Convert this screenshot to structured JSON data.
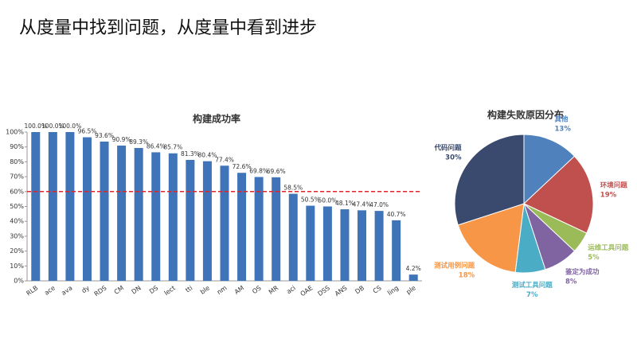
{
  "header": {
    "title": "从度量中找到问题，从度量中看到进步"
  },
  "chart_data": [
    {
      "type": "bar",
      "title": "构建成功率",
      "categories": [
        "RLB",
        "ace",
        "ava",
        "dy",
        "RDS",
        "CM",
        "DN",
        "DS",
        "lect",
        "tti",
        "ble",
        "nm",
        "AM",
        "OS",
        "MR",
        "aci",
        "OAE",
        "DSS",
        "ANS",
        "DB",
        "CS",
        "ling",
        "ple"
      ],
      "values": [
        100.0,
        100.0,
        100.0,
        96.5,
        93.6,
        90.9,
        89.3,
        86.4,
        85.7,
        81.3,
        80.4,
        77.4,
        72.6,
        69.8,
        69.6,
        58.5,
        50.5,
        50.0,
        48.1,
        47.4,
        47.0,
        40.7,
        4.2
      ],
      "value_labels": [
        "100.0%",
        "100.0%",
        "100.0%",
        "96.5%",
        "93.6%",
        "90.9%",
        "89.3%",
        "86.4%",
        "85.7%",
        "81.3%",
        "80.4%",
        "77.4%",
        "72.6%",
        "69.8%",
        "69.6%",
        "58.5%",
        "50.5%",
        "50.0%",
        "48.1%",
        "47.4%",
        "47.0%",
        "40.7%",
        "4.2%"
      ],
      "color": "#3f74b8",
      "ylim": [
        0,
        100
      ],
      "yticks": [
        {
          "value": 0,
          "label": "0%"
        },
        {
          "value": 10,
          "label": "10%"
        },
        {
          "value": 20,
          "label": "20%"
        },
        {
          "value": 30,
          "label": "30%"
        },
        {
          "value": 40,
          "label": "40%"
        },
        {
          "value": 50,
          "label": "50%"
        },
        {
          "value": 60,
          "label": "60%"
        },
        {
          "value": 70,
          "label": "70%"
        },
        {
          "value": 80,
          "label": "80%"
        },
        {
          "value": 90,
          "label": "90%"
        },
        {
          "value": 100,
          "label": "100%"
        }
      ],
      "reference_line": {
        "value": 60,
        "color": "#d9272e"
      }
    },
    {
      "type": "pie",
      "title": "构建失败原因分布",
      "categories": [
        "其他",
        "环境问题",
        "运维工具问题",
        "鉴定为成功",
        "测试工具问题",
        "测试用例问题",
        "代码问题"
      ],
      "values": [
        13,
        19,
        5,
        8,
        7,
        18,
        30
      ],
      "value_labels": [
        "13%",
        "19%",
        "5%",
        "8%",
        "7%",
        "18%",
        "30%"
      ],
      "colors": [
        "#4f81bd",
        "#c0504d",
        "#9bbb59",
        "#8064a2",
        "#4bacc6",
        "#f79646",
        "#3a4a6e"
      ]
    }
  ]
}
